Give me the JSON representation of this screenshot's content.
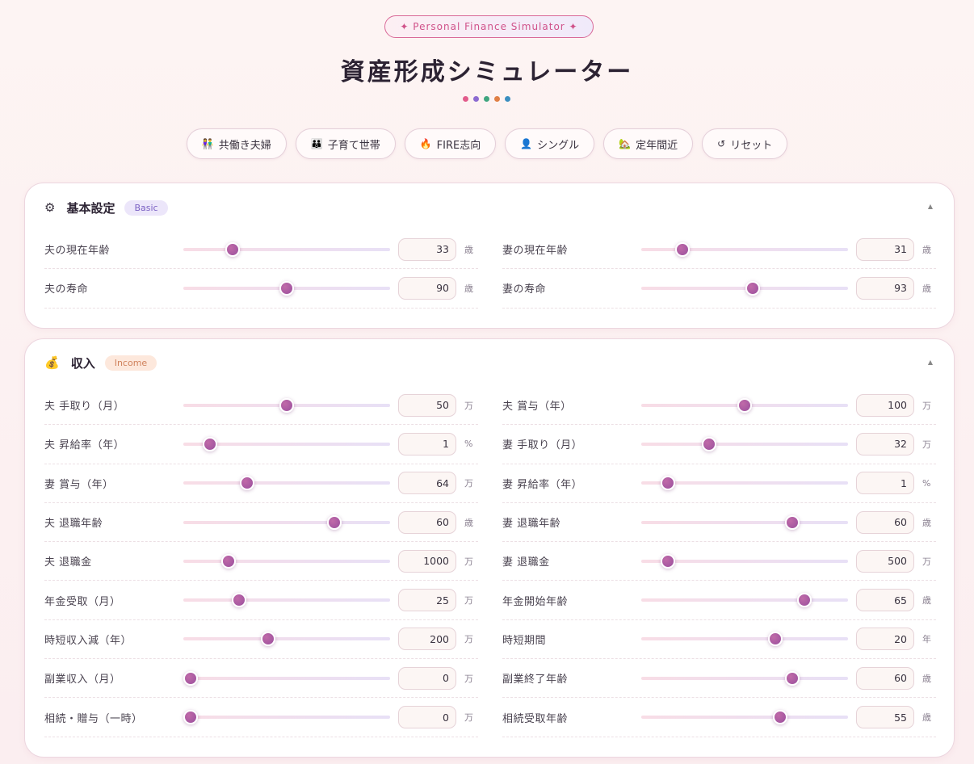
{
  "header": {
    "badge": "✦ Personal Finance Simulator ✦",
    "title": "資産形成シミュレーター",
    "dots": [
      "#e25b8b",
      "#8c6ad1",
      "#3fa57f",
      "#e07f45",
      "#3a8ec0"
    ]
  },
  "presets": [
    {
      "icon": "👫",
      "label": "共働き夫婦"
    },
    {
      "icon": "👪",
      "label": "子育て世帯"
    },
    {
      "icon": "🔥",
      "label": "FIRE志向"
    },
    {
      "icon": "👤",
      "label": "シングル"
    },
    {
      "icon": "🏡",
      "label": "定年間近"
    },
    {
      "icon": "↺",
      "label": "リセット"
    }
  ],
  "basic": {
    "icon": "⚙",
    "title": "基本設定",
    "tag": "Basic",
    "collapse": "▲",
    "fields": [
      {
        "label": "夫の現在年齢",
        "value": "33",
        "unit": "歳",
        "level": 0.24
      },
      {
        "label": "妻の現在年齢",
        "value": "31",
        "unit": "歳",
        "level": 0.2
      },
      {
        "label": "夫の寿命",
        "value": "90",
        "unit": "歳",
        "level": 0.5
      },
      {
        "label": "妻の寿命",
        "value": "93",
        "unit": "歳",
        "level": 0.54
      }
    ]
  },
  "income": {
    "icon": "💰",
    "title": "収入",
    "tag": "Income",
    "collapse": "▲",
    "fields": [
      {
        "label": "夫 手取り（月）",
        "value": "50",
        "unit": "万",
        "level": 0.5
      },
      {
        "label": "夫 賞与（年）",
        "value": "100",
        "unit": "万",
        "level": 0.5
      },
      {
        "label": "夫 昇給率（年）",
        "value": "1",
        "unit": "%",
        "level": 0.13
      },
      {
        "label": "妻 手取り（月）",
        "value": "32",
        "unit": "万",
        "level": 0.33
      },
      {
        "label": "妻 賞与（年）",
        "value": "64",
        "unit": "万",
        "level": 0.31
      },
      {
        "label": "妻 昇給率（年）",
        "value": "1",
        "unit": "%",
        "level": 0.13
      },
      {
        "label": "夫 退職年齢",
        "value": "60",
        "unit": "歳",
        "level": 0.73
      },
      {
        "label": "妻 退職年齢",
        "value": "60",
        "unit": "歳",
        "level": 0.73
      },
      {
        "label": "夫 退職金",
        "value": "1000",
        "unit": "万",
        "level": 0.22
      },
      {
        "label": "妻 退職金",
        "value": "500",
        "unit": "万",
        "level": 0.13
      },
      {
        "label": "年金受取（月）",
        "value": "25",
        "unit": "万",
        "level": 0.27
      },
      {
        "label": "年金開始年齢",
        "value": "65",
        "unit": "歳",
        "level": 0.79
      },
      {
        "label": "時短収入減（年）",
        "value": "200",
        "unit": "万",
        "level": 0.41
      },
      {
        "label": "時短期間",
        "value": "20",
        "unit": "年",
        "level": 0.65
      },
      {
        "label": "副業収入（月）",
        "value": "0",
        "unit": "万",
        "level": 0.035
      },
      {
        "label": "副業終了年齢",
        "value": "60",
        "unit": "歳",
        "level": 0.73
      },
      {
        "label": "相続・贈与（一時）",
        "value": "0",
        "unit": "万",
        "level": 0.035
      },
      {
        "label": "相続受取年齢",
        "value": "55",
        "unit": "歳",
        "level": 0.67
      }
    ]
  }
}
